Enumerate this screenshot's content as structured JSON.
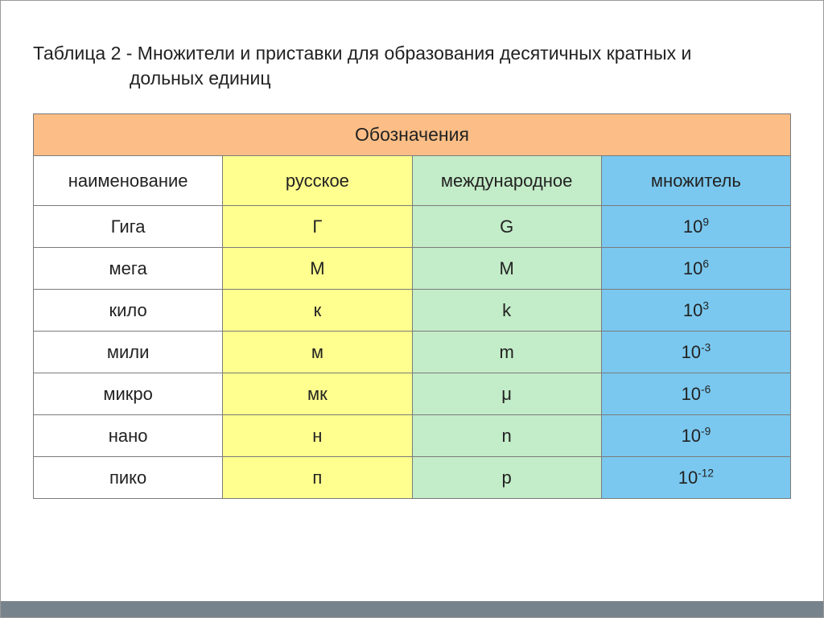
{
  "title": {
    "line1": "Таблица 2 - Множители и приставки для образования десятичных кратных и",
    "line2": "дольных единиц"
  },
  "table": {
    "top_header": "Обозначения",
    "columns": {
      "name": {
        "label": "наименование",
        "background": "#ffffff"
      },
      "ru": {
        "label": "русское",
        "background": "#ffff8f"
      },
      "intl": {
        "label": "международное",
        "background": "#c3ecc8"
      },
      "mult": {
        "label": "множитель",
        "background": "#7ac8ef"
      }
    },
    "header_background": "#fcbe86",
    "border_color": "#7b7b7b",
    "rows": [
      {
        "name": "Гига",
        "ru": "Г",
        "intl": "G",
        "base": "10",
        "exp": "9"
      },
      {
        "name": "мега",
        "ru": "М",
        "intl": "M",
        "base": "10",
        "exp": "6"
      },
      {
        "name": "кило",
        "ru": "к",
        "intl": "k",
        "base": "10",
        "exp": "3"
      },
      {
        "name": "мили",
        "ru": "м",
        "intl": "m",
        "base": "10",
        "exp": "-3"
      },
      {
        "name": "микро",
        "ru": "мк",
        "intl": "μ",
        "base": "10",
        "exp": "-6"
      },
      {
        "name": "нано",
        "ru": "н",
        "intl": "n",
        "base": "10",
        "exp": "-9"
      },
      {
        "name": "пико",
        "ru": "п",
        "intl": "p",
        "base": "10",
        "exp": "-12"
      }
    ]
  },
  "footer_bar_color": "#77838c",
  "slide_background": "#ffffff"
}
